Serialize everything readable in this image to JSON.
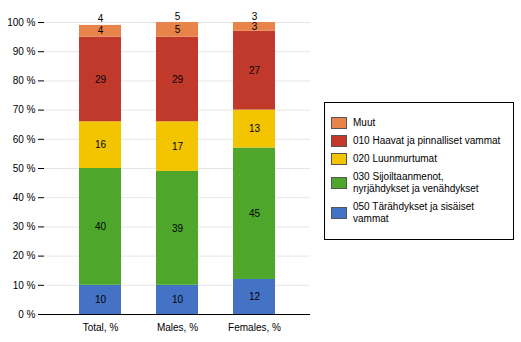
{
  "chart_data": {
    "type": "bar",
    "stacked": true,
    "categories": [
      "Total, %",
      "Males, %",
      "Females, %"
    ],
    "series": [
      {
        "name": "050 Tärähdykset ja sisäiset\nvammat",
        "color": "#4472C4",
        "values": [
          10,
          10,
          12
        ]
      },
      {
        "name": "030 Sijoiltaanmenot,\nnyrjähdykset ja venähdykset",
        "color": "#4EA72A",
        "values": [
          40,
          39,
          45
        ]
      },
      {
        "name": "020 Luunmurtumat",
        "color": "#F2C500",
        "values": [
          16,
          17,
          13
        ]
      },
      {
        "name": "010 Haavat ja pinnalliset vammat",
        "color": "#C0392B",
        "values": [
          29,
          29,
          27
        ]
      },
      {
        "name": "Muut",
        "color": "#E8834A",
        "values": [
          4,
          5,
          3
        ]
      }
    ],
    "ylim": [
      0,
      100
    ],
    "yticks": [
      {
        "value": 0,
        "label": "0 %"
      },
      {
        "value": 10,
        "label": "10 %"
      },
      {
        "value": 20,
        "label": "20 %"
      },
      {
        "value": 30,
        "label": "30 %"
      },
      {
        "value": 40,
        "label": "40 %"
      },
      {
        "value": 50,
        "label": "50 %"
      },
      {
        "value": 60,
        "label": "60 %"
      },
      {
        "value": 70,
        "label": "70 %"
      },
      {
        "value": 80,
        "label": "80 %"
      },
      {
        "value": 90,
        "label": "90 %"
      },
      {
        "value": 100,
        "label": "100 %"
      }
    ],
    "grid": true,
    "data_labels": true,
    "legend": "right"
  }
}
